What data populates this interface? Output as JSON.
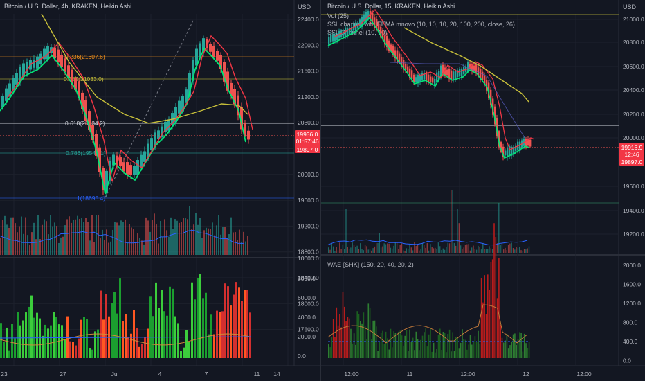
{
  "left_chart": {
    "title": "Bitcoin / U.S. Dollar, 4h, KRAKEN, Heikin Ashi",
    "currency": "USD",
    "price_axis": [
      "22400.0",
      "22000.0",
      "21600.0",
      "21200.0",
      "20800.0",
      "20400.0",
      "20000.0",
      "19600.0",
      "19200.0",
      "18800.0",
      "18400.0",
      "18000.0",
      "17600.0"
    ],
    "volume_label": "10000.0",
    "wae_axis": [
      "8000.0",
      "6000.0",
      "4000.0",
      "2000.0",
      "0.0"
    ],
    "fib_labels": [
      "0.236(21607.6)",
      "0.382(21033.0)",
      "0.618(20134.2)",
      "0.786(19544.1)",
      "1(18695.4)"
    ],
    "price_tags": [
      "19936.0",
      "01:57:46",
      "19897.0"
    ],
    "time_axis": [
      "23",
      "27",
      "Jul",
      "4",
      "7",
      "11",
      "14"
    ],
    "colors": {
      "up": "#26a69a",
      "down": "#ef5350",
      "ssl_up": "#00e676",
      "ssl_down": "#f23645",
      "ema": "#c8c03a"
    }
  },
  "right_chart": {
    "title": "Bitcoin / U.S. Dollar, 15, KRAKEN, Heikin Ashi",
    "currency": "USD",
    "indicators": [
      "Vol (25)",
      "SSL channel with EEMA mnovo (10, 10, 10, 20, 100, 200, close, 26)",
      "SSL Channel (10, 10)"
    ],
    "price_axis": [
      "21000.0",
      "20800.0",
      "20600.0",
      "20400.0",
      "20200.0",
      "20000.0",
      "19600.0",
      "19400.0",
      "19200.0"
    ],
    "wae_title": "WAE [SHK] (150, 20, 40, 20, 2)",
    "wae_axis": [
      "2000.0",
      "1600.0",
      "1200.0",
      "800.0",
      "400.0",
      "0.0"
    ],
    "price_tags": [
      "19916.9",
      "12:46",
      "19897.0"
    ],
    "time_axis": [
      "12:00",
      "11",
      "12:00",
      "12",
      "12:00"
    ]
  }
}
